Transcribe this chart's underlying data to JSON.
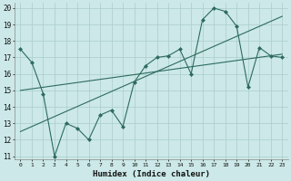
{
  "xlabel": "Humidex (Indice chaleur)",
  "bg_color": "#cce8e8",
  "line_color": "#2d6b5e",
  "grid_color": "#aacccc",
  "x_values": [
    0,
    1,
    2,
    3,
    4,
    5,
    6,
    7,
    8,
    9,
    10,
    11,
    12,
    13,
    14,
    15,
    16,
    17,
    18,
    19,
    20,
    21,
    22,
    23
  ],
  "y_main": [
    17.5,
    16.7,
    14.8,
    11.0,
    13.0,
    12.7,
    12.0,
    13.5,
    13.8,
    12.8,
    15.5,
    16.5,
    17.0,
    17.1,
    17.5,
    16.0,
    19.3,
    20.0,
    19.8,
    18.9,
    15.2,
    17.6,
    17.1,
    17.0
  ],
  "trend1_x": [
    0,
    23
  ],
  "trend1_y": [
    15.0,
    17.2
  ],
  "trend2_x": [
    0,
    23
  ],
  "trend2_y": [
    12.5,
    19.5
  ],
  "ylim_min": 11,
  "ylim_max": 20,
  "yticks": [
    11,
    12,
    13,
    14,
    15,
    16,
    17,
    18,
    19,
    20
  ],
  "xticks": [
    0,
    1,
    2,
    3,
    4,
    5,
    6,
    7,
    8,
    9,
    10,
    11,
    12,
    13,
    14,
    15,
    16,
    17,
    18,
    19,
    20,
    21,
    22,
    23
  ]
}
